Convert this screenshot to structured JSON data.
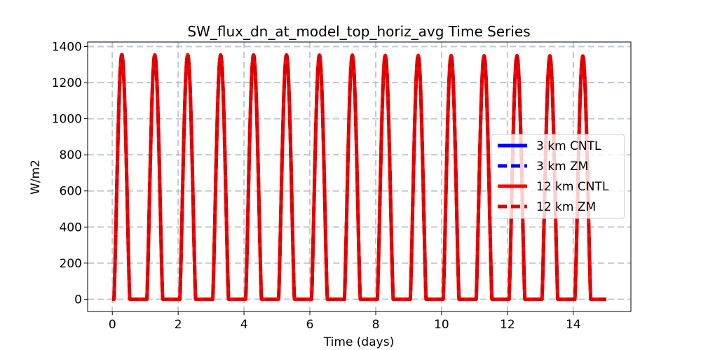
{
  "chart_data": {
    "type": "line",
    "title": "SW_flux_dn_at_model_top_horiz_avg Time Series",
    "xlabel": "Time (days)",
    "ylabel": "W/m2",
    "xlim": [
      -0.75,
      15.75
    ],
    "ylim": [
      -68,
      1425
    ],
    "xticks": [
      0,
      2,
      4,
      6,
      8,
      10,
      12,
      14
    ],
    "xtick_labels": [
      "0",
      "2",
      "4",
      "6",
      "8",
      "10",
      "12",
      "14"
    ],
    "yticks": [
      0,
      200,
      400,
      600,
      800,
      1000,
      1200,
      1400
    ],
    "ytick_labels": [
      "0",
      "200",
      "400",
      "600",
      "800",
      "1000",
      "1200",
      "1400"
    ],
    "grid": true,
    "legend_position": "center-right",
    "curve": {
      "days": 15,
      "day_start": [
        0.0,
        1.0,
        2.0,
        3.0,
        4.0,
        5.0,
        6.0,
        7.0,
        8.0,
        9.0,
        10.0,
        11.0,
        12.0,
        13.0,
        14.0
      ],
      "sunrise_frac": 0.05,
      "sunset_frac": 0.53,
      "peaks": [
        1355,
        1354,
        1354,
        1353,
        1353,
        1353,
        1352,
        1352,
        1351,
        1351,
        1350,
        1349,
        1349,
        1348,
        1347
      ],
      "x_end": 15.0
    },
    "series": [
      {
        "name": "3 km CNTL",
        "color": "#0000ff",
        "style": "solid"
      },
      {
        "name": "3 km ZM",
        "color": "#0000ff",
        "style": "dashed"
      },
      {
        "name": "12 km CNTL",
        "color": "#ff0000",
        "style": "solid"
      },
      {
        "name": "12 km ZM",
        "color": "#dd0000",
        "style": "dashed"
      }
    ]
  }
}
